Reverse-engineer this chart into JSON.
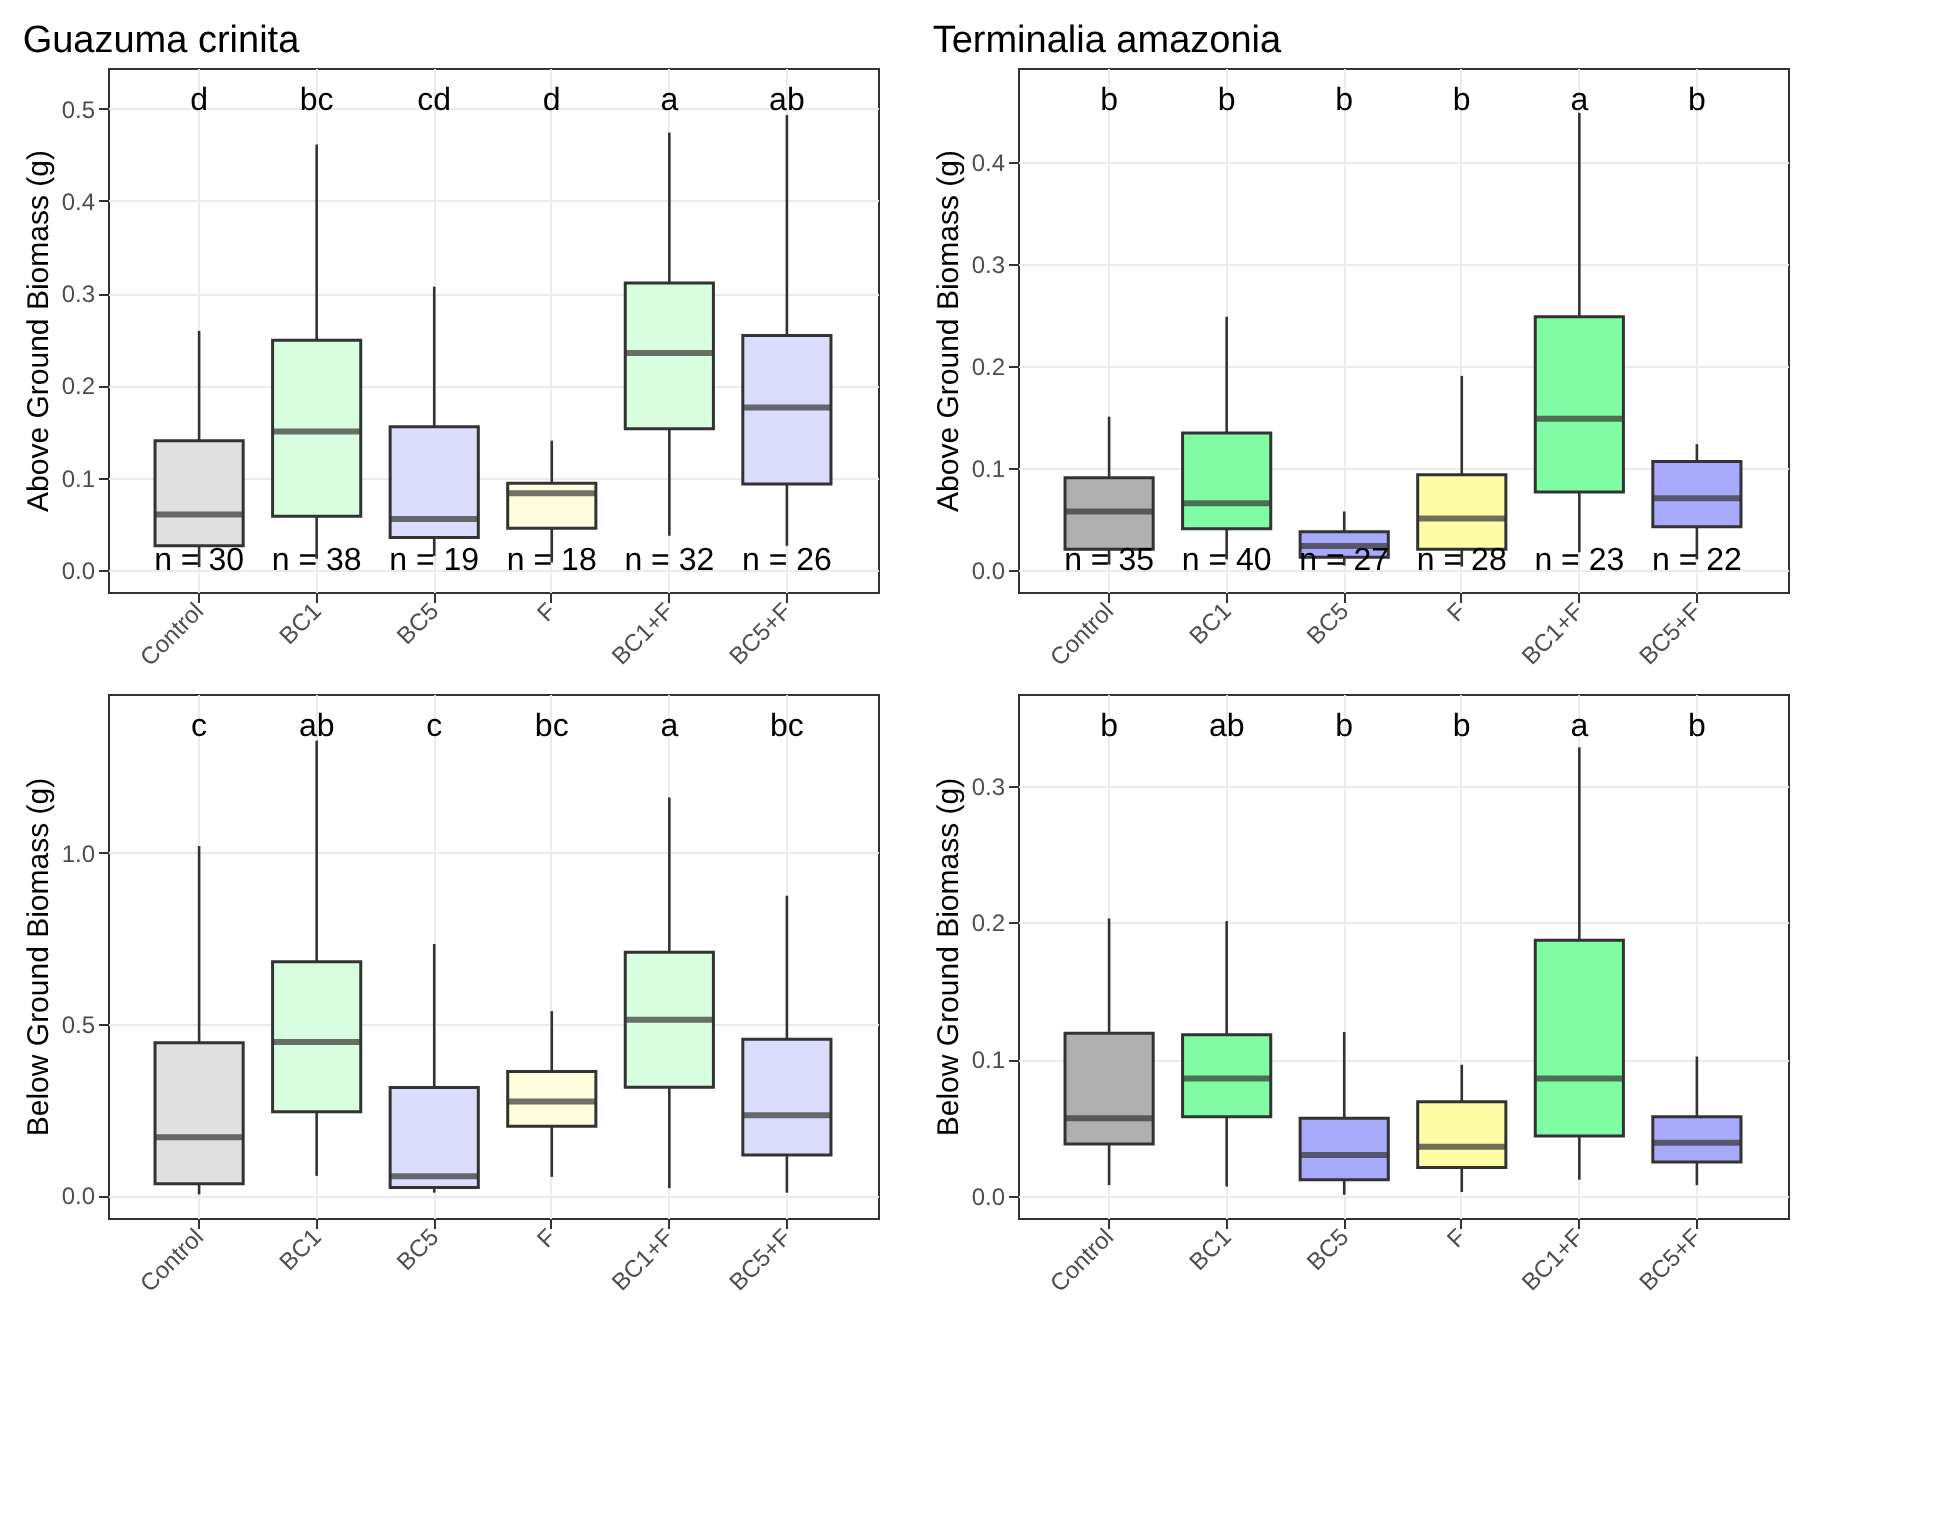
{
  "chart_data": [
    {
      "type": "box",
      "title": "Guazuma crinita",
      "ylabel": "Above Ground Biomass (g)",
      "categories": [
        "Control",
        "BC1",
        "BC5",
        "F",
        "BC1+F",
        "BC5+F"
      ],
      "colors": [
        "#e0e0e0",
        "#d9fde0",
        "#dcdcfc",
        "#fefedc",
        "#d9fde0",
        "#dcdcfc"
      ],
      "grid": true,
      "ylim": [
        -0.024,
        0.544
      ],
      "yticks": [
        {
          "value": 0,
          "label": "0.0"
        },
        {
          "value": 0.1,
          "label": "0.1"
        },
        {
          "value": 0.2,
          "label": "0.2"
        },
        {
          "value": 0.3,
          "label": "0.3"
        },
        {
          "value": 0.4,
          "label": "0.4"
        },
        {
          "value": 0.5,
          "label": "0.5"
        }
      ],
      "boxes": [
        {
          "low": 0.003,
          "q1": 0.026,
          "median": 0.06,
          "q3": 0.14,
          "high": 0.259
        },
        {
          "low": 0.012,
          "q1": 0.058,
          "median": 0.15,
          "q3": 0.249,
          "high": 0.461
        },
        {
          "low": 0.015,
          "q1": 0.035,
          "median": 0.055,
          "q3": 0.155,
          "high": 0.307
        },
        {
          "low": 0.008,
          "q1": 0.045,
          "median": 0.083,
          "q3": 0.094,
          "high": 0.14
        },
        {
          "low": 0.037,
          "q1": 0.153,
          "median": 0.235,
          "q3": 0.311,
          "high": 0.474
        },
        {
          "low": 0.026,
          "q1": 0.093,
          "median": 0.176,
          "q3": 0.254,
          "high": 0.493
        }
      ],
      "annotations": [
        "d",
        "bc",
        "cd",
        "d",
        "a",
        "ab",
        "n = 30",
        "n = 38",
        "n = 19",
        "n = 18",
        "n = 32",
        "n = 26"
      ]
    },
    {
      "type": "box",
      "title": "Terminalia amazonia",
      "ylabel": "Above Ground Biomass (g)",
      "categories": [
        "Control",
        "BC1",
        "BC5",
        "F",
        "BC1+F",
        "BC5+F"
      ],
      "colors": [
        "#b0b0b0",
        "#80fca5",
        "#a9a9fc",
        "#fefea9",
        "#80fca5",
        "#a9a9fc"
      ],
      "grid": true,
      "ylim": [
        -0.022,
        0.492
      ],
      "yticks": [
        {
          "value": 0,
          "label": "0.0"
        },
        {
          "value": 0.1,
          "label": "0.1"
        },
        {
          "value": 0.2,
          "label": "0.2"
        },
        {
          "value": 0.3,
          "label": "0.3"
        },
        {
          "value": 0.4,
          "label": "0.4"
        }
      ],
      "boxes": [
        {
          "low": 0.005,
          "q1": 0.02,
          "median": 0.057,
          "q3": 0.09,
          "high": 0.15
        },
        {
          "low": 0.01,
          "q1": 0.04,
          "median": 0.065,
          "q3": 0.134,
          "high": 0.248
        },
        {
          "low": 0.004,
          "q1": 0.012,
          "median": 0.023,
          "q3": 0.037,
          "high": 0.057
        },
        {
          "low": 0.003,
          "q1": 0.02,
          "median": 0.05,
          "q3": 0.093,
          "high": 0.19
        },
        {
          "low": 0.017,
          "q1": 0.076,
          "median": 0.148,
          "q3": 0.248,
          "high": 0.448
        },
        {
          "low": 0.01,
          "q1": 0.042,
          "median": 0.07,
          "q3": 0.106,
          "high": 0.123
        }
      ],
      "annotations": [
        "b",
        "b",
        "b",
        "b",
        "a",
        "b",
        "n = 35",
        "n = 40",
        "n = 27",
        "n = 28",
        "n = 23",
        "n = 22"
      ]
    },
    {
      "type": "box",
      "ylabel": "Below Ground Biomass (g)",
      "categories": [
        "Control",
        "BC1",
        "BC5",
        "F",
        "BC1+F",
        "BC5+F"
      ],
      "colors": [
        "#e0e0e0",
        "#d9fde0",
        "#dcdcfc",
        "#fefedc",
        "#d9fde0",
        "#dcdcfc"
      ],
      "grid": true,
      "ylim": [
        -0.066,
        1.464
      ],
      "yticks": [
        {
          "value": 0,
          "label": "0.0"
        },
        {
          "value": 0.5,
          "label": "0.5"
        },
        {
          "value": 1,
          "label": "1.0"
        }
      ],
      "boxes": [
        {
          "low": 0.003,
          "q1": 0.034,
          "median": 0.17,
          "q3": 0.446,
          "high": 1.02
        },
        {
          "low": 0.057,
          "q1": 0.244,
          "median": 0.448,
          "q3": 0.682,
          "high": 1.328
        },
        {
          "low": 0.008,
          "q1": 0.023,
          "median": 0.056,
          "q3": 0.315,
          "high": 0.734
        },
        {
          "low": 0.054,
          "q1": 0.202,
          "median": 0.274,
          "q3": 0.362,
          "high": 0.538
        },
        {
          "low": 0.021,
          "q1": 0.316,
          "median": 0.513,
          "q3": 0.71,
          "high": 1.162
        },
        {
          "low": 0.008,
          "q1": 0.118,
          "median": 0.234,
          "q3": 0.456,
          "high": 0.875
        }
      ],
      "annotations": [
        "c",
        "ab",
        "c",
        "bc",
        "a",
        "bc"
      ]
    },
    {
      "type": "box",
      "ylabel": "Below Ground Biomass (g)",
      "categories": [
        "Control",
        "BC1",
        "BC5",
        "F",
        "BC1+F",
        "BC5+F"
      ],
      "colors": [
        "#b0b0b0",
        "#80fca5",
        "#a9a9fc",
        "#fefea9",
        "#80fca5",
        "#a9a9fc"
      ],
      "grid": true,
      "ylim": [
        -0.016,
        0.367
      ],
      "yticks": [
        {
          "value": 0,
          "label": "0.0"
        },
        {
          "value": 0.1,
          "label": "0.1"
        },
        {
          "value": 0.2,
          "label": "0.2"
        },
        {
          "value": 0.3,
          "label": "0.3"
        }
      ],
      "boxes": [
        {
          "low": 0.008,
          "q1": 0.038,
          "median": 0.057,
          "q3": 0.119,
          "high": 0.203
        },
        {
          "low": 0.007,
          "q1": 0.058,
          "median": 0.086,
          "q3": 0.118,
          "high": 0.201
        },
        {
          "low": 0.001,
          "q1": 0.012,
          "median": 0.03,
          "q3": 0.057,
          "high": 0.12
        },
        {
          "low": 0.003,
          "q1": 0.021,
          "median": 0.036,
          "q3": 0.069,
          "high": 0.096
        },
        {
          "low": 0.012,
          "q1": 0.044,
          "median": 0.086,
          "q3": 0.187,
          "high": 0.328
        },
        {
          "low": 0.008,
          "q1": 0.025,
          "median": 0.039,
          "q3": 0.058,
          "high": 0.102
        }
      ],
      "annotations": [
        "b",
        "ab",
        "b",
        "b",
        "a",
        "b"
      ]
    }
  ]
}
